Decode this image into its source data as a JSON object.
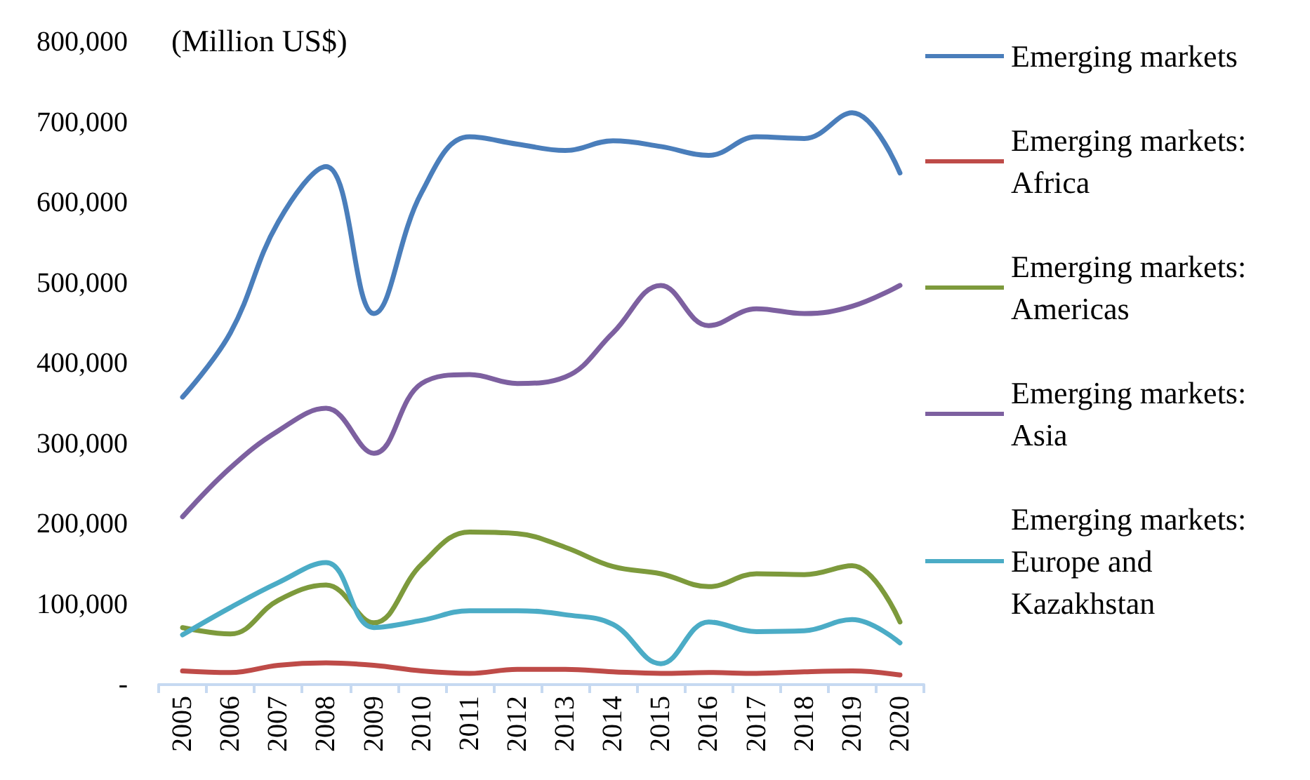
{
  "chart_data": {
    "type": "line",
    "ylabel": "(Million US$)",
    "categories": [
      "2005",
      "2006",
      "2007",
      "2008",
      "2009",
      "2010",
      "2011",
      "2012",
      "2013",
      "2014",
      "2015",
      "2016",
      "2017",
      "2018",
      "2019",
      "2020"
    ],
    "series": [
      {
        "name": "Emerging markets",
        "color": "#4a7ebb",
        "values": [
          358000,
          438000,
          576000,
          645000,
          462000,
          613000,
          682000,
          673000,
          665000,
          677000,
          670000,
          659000,
          682000,
          680000,
          712000,
          637000
        ]
      },
      {
        "name": "Emerging markets: Africa",
        "color": "#be4b48",
        "values": [
          17000,
          15000,
          24000,
          27000,
          24000,
          17000,
          14000,
          19000,
          19000,
          16000,
          14000,
          15000,
          14000,
          16000,
          17000,
          12000
        ]
      },
      {
        "name": "Emerging markets: Americas",
        "color": "#7d9a3c",
        "values": [
          71000,
          63000,
          105000,
          124000,
          77000,
          150000,
          190000,
          188000,
          171000,
          147000,
          138000,
          122000,
          138000,
          137000,
          148000,
          78000
        ]
      },
      {
        "name": "Emerging markets: Asia",
        "color": "#7d60a0",
        "values": [
          209000,
          270000,
          316000,
          344000,
          288000,
          375000,
          386000,
          375000,
          383000,
          438000,
          497000,
          447000,
          468000,
          462000,
          471000,
          497000
        ]
      },
      {
        "name": "Emerging markets: Europe and Kazakhstan",
        "color": "#4bacc6",
        "values": [
          62000,
          96000,
          127000,
          152000,
          71000,
          80000,
          92000,
          92000,
          87000,
          75000,
          26000,
          78000,
          66000,
          67000,
          81000,
          52000
        ]
      }
    ],
    "ylim": [
      0,
      800000
    ],
    "yticks": [
      {
        "value": 0,
        "label": "-"
      },
      {
        "value": 100000,
        "label": "100,000"
      },
      {
        "value": 200000,
        "label": "200,000"
      },
      {
        "value": 300000,
        "label": "300,000"
      },
      {
        "value": 400000,
        "label": "400,000"
      },
      {
        "value": 500000,
        "label": "500,000"
      },
      {
        "value": 600000,
        "label": "600,000"
      },
      {
        "value": 700000,
        "label": "700,000"
      },
      {
        "value": 800000,
        "label": "800,000"
      }
    ],
    "grid": false,
    "legend": "right",
    "marker": "none",
    "line_style": "solid"
  }
}
